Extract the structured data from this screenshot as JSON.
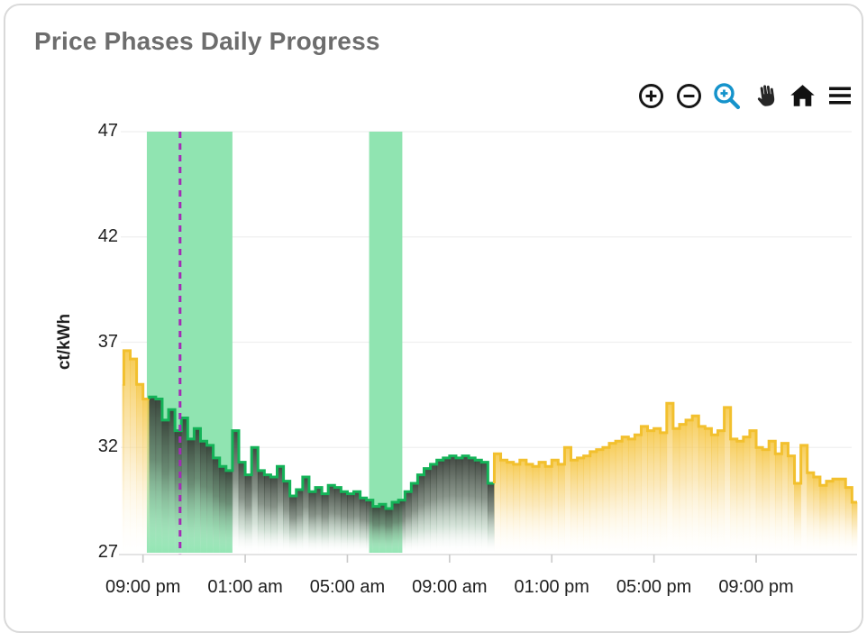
{
  "header": {
    "title": "Price Phases Daily Progress"
  },
  "toolbar": {
    "active_color": "#1593cb",
    "icon_color": "#161616",
    "tools": [
      {
        "name": "zoom-in"
      },
      {
        "name": "zoom-out"
      },
      {
        "name": "box-zoom",
        "active": true
      },
      {
        "name": "pan"
      },
      {
        "name": "reset-home"
      },
      {
        "name": "menu"
      }
    ]
  },
  "chart_data": {
    "type": "area",
    "subtype": "step-line phases",
    "title": "Price Phases Daily Progress",
    "xlabel": "",
    "ylabel": "ct/kWh",
    "ylim": [
      27,
      47
    ],
    "y_ticks": [
      47,
      42,
      37,
      32,
      27
    ],
    "x_ticks": [
      {
        "hour": 21,
        "label": "09:00 pm"
      },
      {
        "hour": 25,
        "label": "01:00 am"
      },
      {
        "hour": 29,
        "label": "05:00 am"
      },
      {
        "hour": 33,
        "label": "09:00 am"
      },
      {
        "hour": 37,
        "label": "01:00 pm"
      },
      {
        "hour": 41,
        "label": "05:00 pm"
      },
      {
        "hour": 45,
        "label": "09:00 pm"
      }
    ],
    "x_domain_hours": [
      20.2,
      48.95
    ],
    "step_hours": 0.25,
    "grid": "horizontal-only",
    "legend": "none",
    "now_line_hour": 22.45,
    "cheap_phase_bands": [
      {
        "start_hour": 21.15,
        "end_hour": 24.5
      },
      {
        "start_hour": 29.85,
        "end_hour": 31.15
      }
    ],
    "colors": {
      "band": "#90e4b1",
      "green_line": "#14b358",
      "yellow_line": "#f2c02e",
      "now_line": "#a32db5",
      "grid_line": "#efefef",
      "axis_line": "#dcdcdc",
      "tick_mark": "#c9c9c9",
      "green_fill_top": "#343b34",
      "yellow_fill_top": "#f5c43c"
    },
    "series": [
      [
        20.0,
        35.0,
        "y"
      ],
      [
        20.25,
        36.6,
        "y"
      ],
      [
        20.5,
        36.2,
        "y"
      ],
      [
        20.75,
        35.0,
        "y"
      ],
      [
        21.0,
        34.3,
        "y"
      ],
      [
        21.25,
        34.4,
        "g"
      ],
      [
        21.5,
        34.3,
        "g"
      ],
      [
        21.75,
        33.3,
        "g"
      ],
      [
        22.0,
        33.8,
        "g"
      ],
      [
        22.25,
        32.8,
        "g"
      ],
      [
        22.5,
        33.4,
        "g"
      ],
      [
        22.75,
        32.4,
        "g"
      ],
      [
        23.0,
        32.9,
        "g"
      ],
      [
        23.25,
        32.3,
        "g"
      ],
      [
        23.5,
        32.1,
        "g"
      ],
      [
        23.75,
        31.5,
        "g"
      ],
      [
        24.0,
        31.1,
        "g"
      ],
      [
        24.25,
        30.9,
        "g"
      ],
      [
        24.5,
        32.8,
        "g"
      ],
      [
        24.75,
        31.3,
        "g"
      ],
      [
        25.0,
        30.7,
        "g"
      ],
      [
        25.25,
        32.0,
        "g"
      ],
      [
        25.5,
        30.9,
        "g"
      ],
      [
        25.75,
        30.7,
        "g"
      ],
      [
        26.0,
        30.6,
        "g"
      ],
      [
        26.25,
        31.1,
        "g"
      ],
      [
        26.5,
        30.4,
        "g"
      ],
      [
        26.75,
        29.7,
        "g"
      ],
      [
        27.0,
        30.0,
        "g"
      ],
      [
        27.25,
        30.6,
        "g"
      ],
      [
        27.5,
        29.9,
        "g"
      ],
      [
        27.75,
        30.1,
        "g"
      ],
      [
        28.0,
        29.8,
        "g"
      ],
      [
        28.25,
        30.2,
        "g"
      ],
      [
        28.5,
        30.1,
        "g"
      ],
      [
        28.75,
        29.9,
        "g"
      ],
      [
        29.0,
        29.8,
        "g"
      ],
      [
        29.25,
        29.9,
        "g"
      ],
      [
        29.5,
        29.6,
        "g"
      ],
      [
        29.75,
        29.5,
        "g"
      ],
      [
        30.0,
        29.2,
        "g"
      ],
      [
        30.25,
        29.3,
        "g"
      ],
      [
        30.5,
        29.1,
        "g"
      ],
      [
        30.75,
        29.4,
        "g"
      ],
      [
        31.0,
        29.5,
        "g"
      ],
      [
        31.25,
        29.9,
        "g"
      ],
      [
        31.5,
        30.3,
        "g"
      ],
      [
        31.75,
        30.7,
        "g"
      ],
      [
        32.0,
        31.0,
        "g"
      ],
      [
        32.25,
        31.2,
        "g"
      ],
      [
        32.5,
        31.4,
        "g"
      ],
      [
        32.75,
        31.5,
        "g"
      ],
      [
        33.0,
        31.6,
        "g"
      ],
      [
        33.25,
        31.5,
        "g"
      ],
      [
        33.5,
        31.6,
        "g"
      ],
      [
        33.75,
        31.5,
        "g"
      ],
      [
        34.0,
        31.4,
        "g"
      ],
      [
        34.25,
        31.3,
        "g"
      ],
      [
        34.5,
        30.3,
        "g"
      ],
      [
        34.75,
        31.7,
        "y"
      ],
      [
        35.0,
        31.4,
        "y"
      ],
      [
        35.25,
        31.3,
        "y"
      ],
      [
        35.5,
        31.2,
        "y"
      ],
      [
        35.75,
        31.4,
        "y"
      ],
      [
        36.0,
        31.2,
        "y"
      ],
      [
        36.25,
        31.1,
        "y"
      ],
      [
        36.5,
        31.3,
        "y"
      ],
      [
        36.75,
        31.1,
        "y"
      ],
      [
        37.0,
        31.4,
        "y"
      ],
      [
        37.25,
        31.2,
        "y"
      ],
      [
        37.5,
        32.0,
        "y"
      ],
      [
        37.75,
        31.4,
        "y"
      ],
      [
        38.0,
        31.5,
        "y"
      ],
      [
        38.25,
        31.6,
        "y"
      ],
      [
        38.5,
        31.8,
        "y"
      ],
      [
        38.75,
        31.9,
        "y"
      ],
      [
        39.0,
        32.0,
        "y"
      ],
      [
        39.25,
        32.2,
        "y"
      ],
      [
        39.5,
        32.3,
        "y"
      ],
      [
        39.75,
        32.5,
        "y"
      ],
      [
        40.0,
        32.4,
        "y"
      ],
      [
        40.25,
        32.6,
        "y"
      ],
      [
        40.5,
        33.0,
        "y"
      ],
      [
        40.75,
        32.8,
        "y"
      ],
      [
        41.0,
        32.9,
        "y"
      ],
      [
        41.25,
        32.7,
        "y"
      ],
      [
        41.5,
        34.1,
        "y"
      ],
      [
        41.75,
        32.9,
        "y"
      ],
      [
        42.0,
        33.1,
        "y"
      ],
      [
        42.25,
        33.3,
        "y"
      ],
      [
        42.5,
        33.5,
        "y"
      ],
      [
        42.75,
        33.0,
        "y"
      ],
      [
        43.0,
        32.9,
        "y"
      ],
      [
        43.25,
        32.6,
        "y"
      ],
      [
        43.5,
        32.8,
        "y"
      ],
      [
        43.75,
        33.9,
        "y"
      ],
      [
        44.0,
        32.4,
        "y"
      ],
      [
        44.25,
        32.3,
        "y"
      ],
      [
        44.5,
        32.5,
        "y"
      ],
      [
        44.75,
        32.8,
        "y"
      ],
      [
        45.0,
        32.0,
        "y"
      ],
      [
        45.25,
        31.9,
        "y"
      ],
      [
        45.5,
        32.3,
        "y"
      ],
      [
        45.75,
        31.7,
        "y"
      ],
      [
        46.0,
        32.2,
        "y"
      ],
      [
        46.25,
        31.6,
        "y"
      ],
      [
        46.5,
        30.3,
        "y"
      ],
      [
        46.75,
        32.1,
        "y"
      ],
      [
        47.0,
        30.8,
        "y"
      ],
      [
        47.25,
        30.6,
        "y"
      ],
      [
        47.5,
        30.2,
        "y"
      ],
      [
        47.75,
        30.4,
        "y"
      ],
      [
        48.0,
        30.5,
        "y"
      ],
      [
        48.25,
        30.5,
        "y"
      ],
      [
        48.5,
        30.1,
        "y"
      ],
      [
        48.75,
        29.4,
        "y"
      ]
    ]
  }
}
